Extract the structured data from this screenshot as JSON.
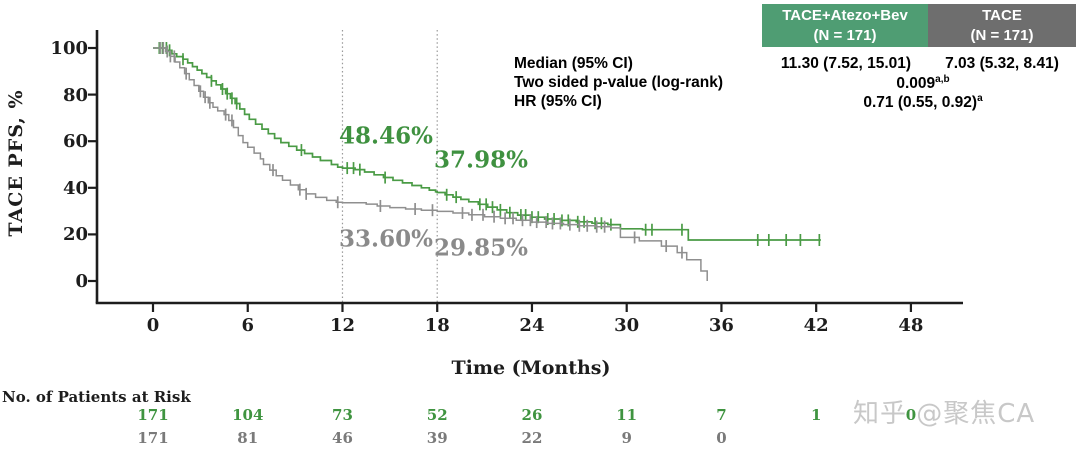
{
  "colors": {
    "green": "#4a9b45",
    "gray": "#8f8f8f",
    "header_green_bg": "#4f9d73",
    "header_gray_bg": "#6e6e6e",
    "axis": "#1d1d1d",
    "ref_line": "#9a9a9a",
    "watermark": "#c8c8c8",
    "risk_green": "#3f9440",
    "risk_gray": "#7a7a7a"
  },
  "y_axis": {
    "label": "TACE PFS, %",
    "ticks": [
      "100",
      "80",
      "60",
      "40",
      "20",
      "0"
    ]
  },
  "x_axis": {
    "label": "Time (Months)",
    "ticks": [
      "0",
      "6",
      "12",
      "18",
      "24",
      "30",
      "36",
      "42",
      "48"
    ]
  },
  "annotations": {
    "green_at_12": "48.46%",
    "green_at_18": "37.98%",
    "gray_at_12": "33.60%",
    "gray_at_18": "29.85%"
  },
  "stats_table": {
    "col1_header_line1": "TACE+Atezo+Bev",
    "col1_header_line2": "(N = 171)",
    "col2_header_line1": "TACE",
    "col2_header_line2": "(N = 171)",
    "median_row": {
      "label": "Median (95% CI)",
      "col1": "11.30 (7.52, 15.01)",
      "col2": "7.03 (5.32, 8.41)"
    },
    "pvalue_row": {
      "label": "Two sided p-value (log-rank)",
      "value": "0.009",
      "sup": "a,b"
    },
    "hr_row": {
      "label": "HR  (95% CI)",
      "value": "0.71 (0.55, 0.92)",
      "sup": "a"
    }
  },
  "risk_table": {
    "title": "No. of Patients at Risk",
    "green_row": [
      "171",
      "104",
      "73",
      "52",
      "26",
      "11",
      "7",
      "1",
      "0"
    ],
    "gray_row": [
      "171",
      "81",
      "46",
      "39",
      "22",
      "9",
      "0"
    ]
  },
  "watermark": "知乎 @聚焦CA",
  "chart_data": {
    "type": "line",
    "subtype": "kaplan-meier-step",
    "xlabel": "Time (Months)",
    "ylabel": "TACE PFS, %",
    "xlim": [
      0,
      48
    ],
    "ylim": [
      0,
      100
    ],
    "x_tick_months": [
      0,
      6,
      12,
      18,
      24,
      30,
      36,
      42,
      48
    ],
    "y_tick_pcts": [
      100,
      80,
      60,
      40,
      20,
      0
    ],
    "reference_lines_months": [
      12,
      18
    ],
    "landmarks": [
      {
        "series": "TACE+Atezo+Bev",
        "month": 12,
        "pct": 48.46
      },
      {
        "series": "TACE+Atezo+Bev",
        "month": 18,
        "pct": 37.98
      },
      {
        "series": "TACE",
        "month": 12,
        "pct": 33.6
      },
      {
        "series": "TACE",
        "month": 18,
        "pct": 29.85
      }
    ],
    "series": [
      {
        "name": "TACE+Atezo+Bev",
        "n": 171,
        "median": "11.30 (7.52, 15.01)",
        "steps": [
          [
            0,
            100
          ],
          [
            0.9,
            99
          ],
          [
            1.2,
            97.5
          ],
          [
            1.5,
            96.3
          ],
          [
            1.9,
            95.2
          ],
          [
            2.2,
            93.6
          ],
          [
            2.5,
            92
          ],
          [
            2.8,
            90.5
          ],
          [
            3.1,
            89
          ],
          [
            3.4,
            87.4
          ],
          [
            3.7,
            85.9
          ],
          [
            4,
            84.2
          ],
          [
            4.3,
            82.4
          ],
          [
            4.6,
            80.4
          ],
          [
            4.9,
            78.4
          ],
          [
            5.2,
            76.2
          ],
          [
            5.5,
            73.8
          ],
          [
            5.8,
            71.5
          ],
          [
            6.1,
            69.4
          ],
          [
            6.5,
            67.3
          ],
          [
            6.9,
            65.2
          ],
          [
            7.3,
            63.2
          ],
          [
            7.7,
            61.2
          ],
          [
            8.1,
            59.4
          ],
          [
            8.6,
            57.8
          ],
          [
            9.1,
            56.2
          ],
          [
            9.6,
            54.7
          ],
          [
            10.1,
            53.2
          ],
          [
            10.6,
            51.7
          ],
          [
            11.3,
            50
          ],
          [
            11.7,
            48.9
          ],
          [
            12,
            48.46
          ],
          [
            12.8,
            47.8
          ],
          [
            13.4,
            46.8
          ],
          [
            14,
            45.6
          ],
          [
            14.6,
            44.4
          ],
          [
            15.2,
            43.2
          ],
          [
            15.8,
            42.1
          ],
          [
            16.4,
            41
          ],
          [
            17,
            40
          ],
          [
            17.5,
            39
          ],
          [
            17.9,
            38.3
          ],
          [
            18,
            37.98
          ],
          [
            18.5,
            37
          ],
          [
            19,
            36
          ],
          [
            19.5,
            35
          ],
          [
            20,
            34
          ],
          [
            20.6,
            32.9
          ],
          [
            21.2,
            31.7
          ],
          [
            21.8,
            30.5
          ],
          [
            22.4,
            29.3
          ],
          [
            23.1,
            28.3
          ],
          [
            23.9,
            27.4
          ],
          [
            24.8,
            26.6
          ],
          [
            25.8,
            26
          ],
          [
            26.8,
            25.4
          ],
          [
            27.8,
            24.8
          ],
          [
            28.8,
            24.2
          ],
          [
            29.6,
            22.4
          ],
          [
            31,
            22
          ],
          [
            33.9,
            17.6
          ],
          [
            42.3,
            17.6
          ]
        ],
        "censor_months": [
          0.4,
          0.6,
          0.85,
          1.05,
          1.9,
          3.7,
          4.4,
          4.7,
          5,
          5.3,
          9.4,
          12.3,
          12.7,
          13.1,
          14.7,
          18.6,
          19.2,
          20.7,
          21.1,
          21.5,
          22,
          22.6,
          23.3,
          23.6,
          24,
          24.4,
          25,
          25.4,
          25.9,
          26.3,
          26.9,
          27.3,
          28,
          28.4,
          29,
          31.2,
          31.6,
          33.5,
          38.3,
          39,
          40.1,
          41,
          42.2
        ]
      },
      {
        "name": "TACE",
        "n": 171,
        "median": "7.03 (5.32, 8.41)",
        "steps": [
          [
            0,
            100
          ],
          [
            0.8,
            98.5
          ],
          [
            1.1,
            96.4
          ],
          [
            1.4,
            94
          ],
          [
            1.7,
            91.5
          ],
          [
            2,
            89
          ],
          [
            2.3,
            86.4
          ],
          [
            2.6,
            83.9
          ],
          [
            2.9,
            81.4
          ],
          [
            3.2,
            78.9
          ],
          [
            3.5,
            76.5
          ],
          [
            3.8,
            74.6
          ],
          [
            4.1,
            73
          ],
          [
            4.5,
            71.4
          ],
          [
            4.8,
            68.9
          ],
          [
            5.1,
            65.9
          ],
          [
            5.4,
            62.4
          ],
          [
            5.7,
            59.4
          ],
          [
            6,
            57.4
          ],
          [
            6.4,
            54.9
          ],
          [
            6.8,
            52.4
          ],
          [
            7,
            50
          ],
          [
            7.4,
            47.6
          ],
          [
            7.8,
            45.2
          ],
          [
            8.2,
            43.2
          ],
          [
            8.7,
            41.2
          ],
          [
            9.2,
            39.2
          ],
          [
            9.7,
            37.4
          ],
          [
            10.3,
            35.9
          ],
          [
            11,
            34.6
          ],
          [
            11.6,
            33.8
          ],
          [
            12,
            33.6
          ],
          [
            13.5,
            33
          ],
          [
            14.2,
            32.2
          ],
          [
            15,
            31.5
          ],
          [
            16,
            30.9
          ],
          [
            17,
            30.4
          ],
          [
            18,
            29.85
          ],
          [
            19,
            29.2
          ],
          [
            20,
            28.4
          ],
          [
            21,
            27.6
          ],
          [
            22,
            26.9
          ],
          [
            23,
            26.1
          ],
          [
            24,
            25.3
          ],
          [
            25,
            24.7
          ],
          [
            26,
            24.2
          ],
          [
            27,
            23.7
          ],
          [
            28,
            23.3
          ],
          [
            29,
            22.8
          ],
          [
            29.6,
            18.7
          ],
          [
            30.8,
            17.2
          ],
          [
            32.2,
            15
          ],
          [
            33.2,
            12.2
          ],
          [
            33.8,
            9.1
          ],
          [
            34.7,
            4.3
          ],
          [
            35.1,
            0
          ]
        ],
        "censor_months": [
          0.45,
          0.65,
          0.9,
          1.1,
          1.35,
          2.1,
          3,
          3.3,
          3.6,
          4.6,
          5,
          7.6,
          9.3,
          9.7,
          11.7,
          14.4,
          16.6,
          17.7,
          19.6,
          20.2,
          20.9,
          21.6,
          22.3,
          22.8,
          23.4,
          23.9,
          24.3,
          24.9,
          25.3,
          25.8,
          26.4,
          27,
          27.5,
          28.1,
          28.6,
          30.5,
          32.5,
          33.5
        ]
      }
    ]
  }
}
